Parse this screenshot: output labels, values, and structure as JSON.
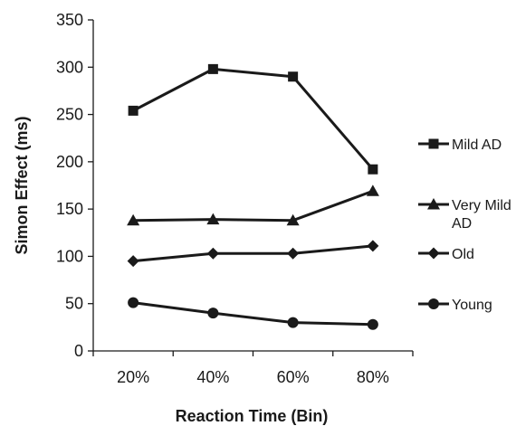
{
  "chart_data": {
    "type": "line",
    "title": "",
    "xlabel": "Reaction Time (Bin)",
    "ylabel": "Simon Effect (ms)",
    "categories": [
      "20%",
      "40%",
      "60%",
      "80%"
    ],
    "ylim": [
      0,
      350
    ],
    "yticks": [
      0,
      50,
      100,
      150,
      200,
      250,
      300,
      350
    ],
    "grid": false,
    "legend_position": "right",
    "color": "#1a1a1a",
    "series": [
      {
        "name": "Mild AD",
        "marker": "square",
        "values": [
          254,
          298,
          290,
          192
        ]
      },
      {
        "name": "Very Mild AD",
        "marker": "triangle",
        "values": [
          138,
          139,
          138,
          169
        ]
      },
      {
        "name": "Old",
        "marker": "diamond",
        "values": [
          95,
          103,
          103,
          111
        ]
      },
      {
        "name": "Young",
        "marker": "circle",
        "values": [
          51,
          40,
          30,
          28
        ]
      }
    ]
  }
}
